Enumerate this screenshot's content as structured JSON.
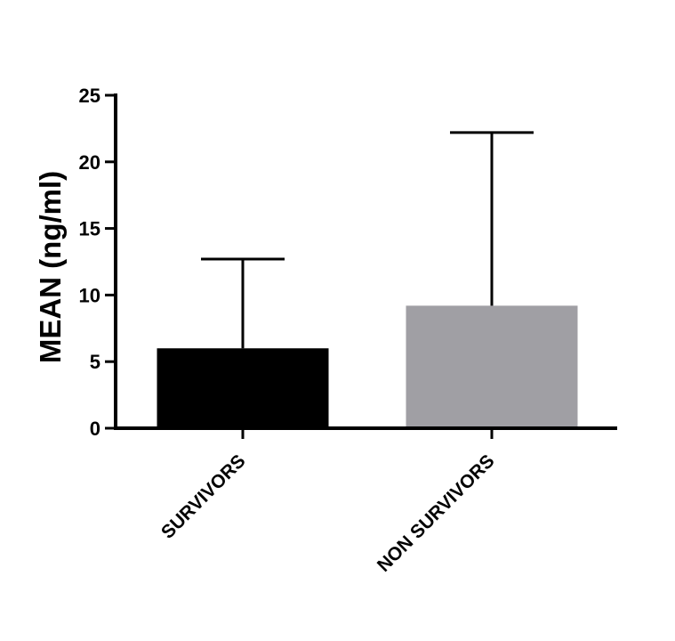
{
  "chart_data": {
    "type": "bar",
    "title": "",
    "xlabel": "",
    "ylabel": "MEAN (ng/ml)",
    "ylim": [
      0,
      25
    ],
    "yticks": [
      0,
      5,
      10,
      15,
      20,
      25
    ],
    "yticks_text": [
      "0",
      "5",
      "10",
      "15",
      "20",
      "25"
    ],
    "grid": false,
    "categories": [
      "SURVIVORS",
      "NON SURVIVORS"
    ],
    "values": [
      6.0,
      9.2
    ],
    "error_upper": [
      12.7,
      22.2
    ],
    "colors": [
      "#000000",
      "#a09fa4"
    ]
  }
}
